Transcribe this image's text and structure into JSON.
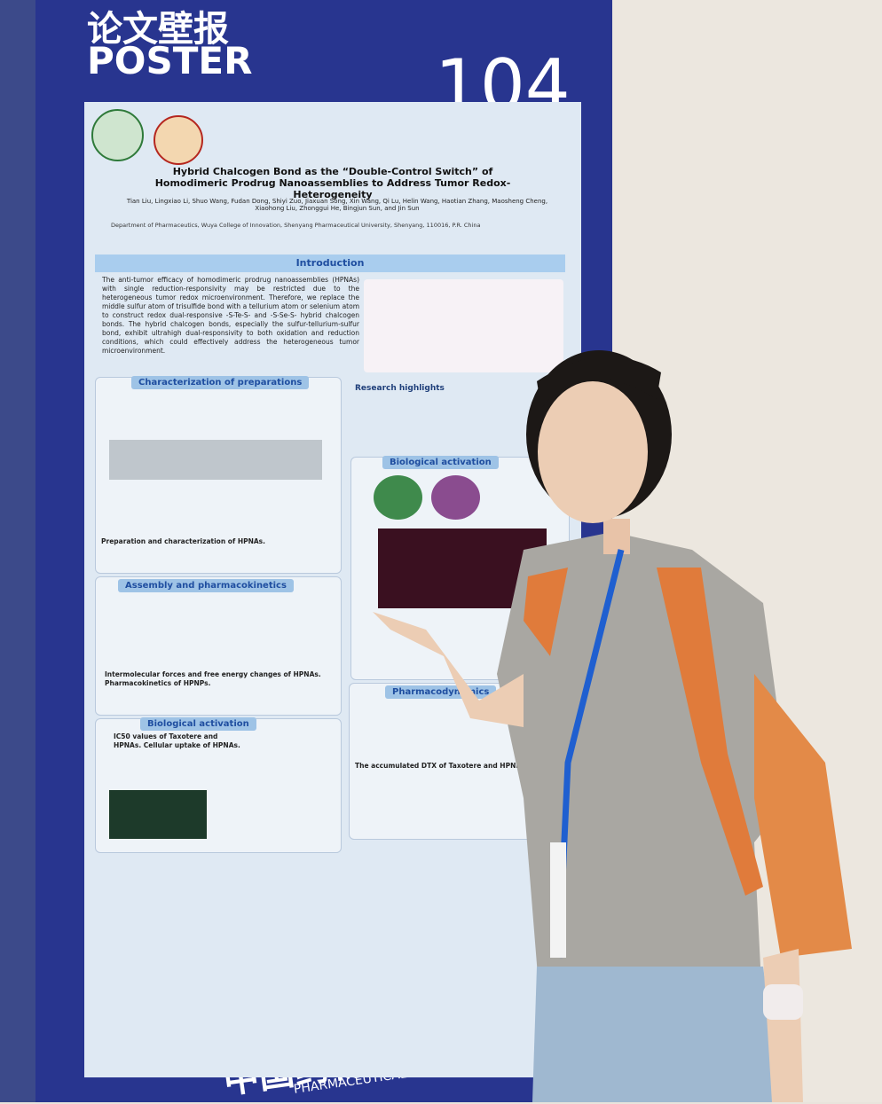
{
  "board": {
    "title_cn": "论文壁报",
    "title_en": "POSTER",
    "number": "104",
    "footer_cn": "中国药物制剂大会",
    "footer_en": "PHARMACEUTICAL CONFERENCE"
  },
  "poster": {
    "title": "Hybrid Chalcogen Bond as the “Double-Control Switch” of Homodimeric Prodrug Nanoassemblies to Address Tumor Redox-Heterogeneity",
    "authors": "Tian Liu, Lingxiao Li, Shuo Wang, Fudan Dong, Shiyi Zuo, Jiaxuan Song, Xin Wang, Qi Lu, Helin Wang, Haotian Zhang, Maosheng Cheng, Xiaohong Liu, Zhonggui He, Bingjun Sun, and Jin Sun",
    "affiliation": "Department of Pharmaceutics, Wuya College of Innovation, Shenyang Pharmaceutical University, Shenyang, 110016, P.R. China",
    "intro_heading": "Introduction",
    "intro_text": "The anti-tumor efficacy of homodimeric prodrug nanoassemblies (HPNAs) with single reduction-responsivity may be restricted due to the heterogeneous tumor redox microenvironment. Therefore, we replace the middle sulfur atom of trisulfide bond with a tellurium atom or selenium atom to construct redox dual-responsive -S-Te-S- and -S-Se-S- hybrid chalcogen bonds. The hybrid chalcogen bonds, especially the sulfur-tellurium-sulfur bond, exhibit ultrahigh dual-responsivity to both oxidation and reduction conditions, which could effectively address the heterogeneous tumor microenvironment.",
    "sections": [
      "Characterization of preparations",
      "Research highlights",
      "Biological activation",
      "Assembly and pharmacokinetics",
      "Biological activation",
      "Pharmacodynamics"
    ],
    "captions": [
      "Preparation and characterization of HPNAs.",
      "Intermolecular forces and free energy changes of HPNAs. Pharmacokinetics of HPNPs.",
      "IC50 values of Taxotere and HPNAs. Cellular uptake of HPNAs.",
      "The accumulated DTX of Taxotere and HPNPs"
    ]
  }
}
